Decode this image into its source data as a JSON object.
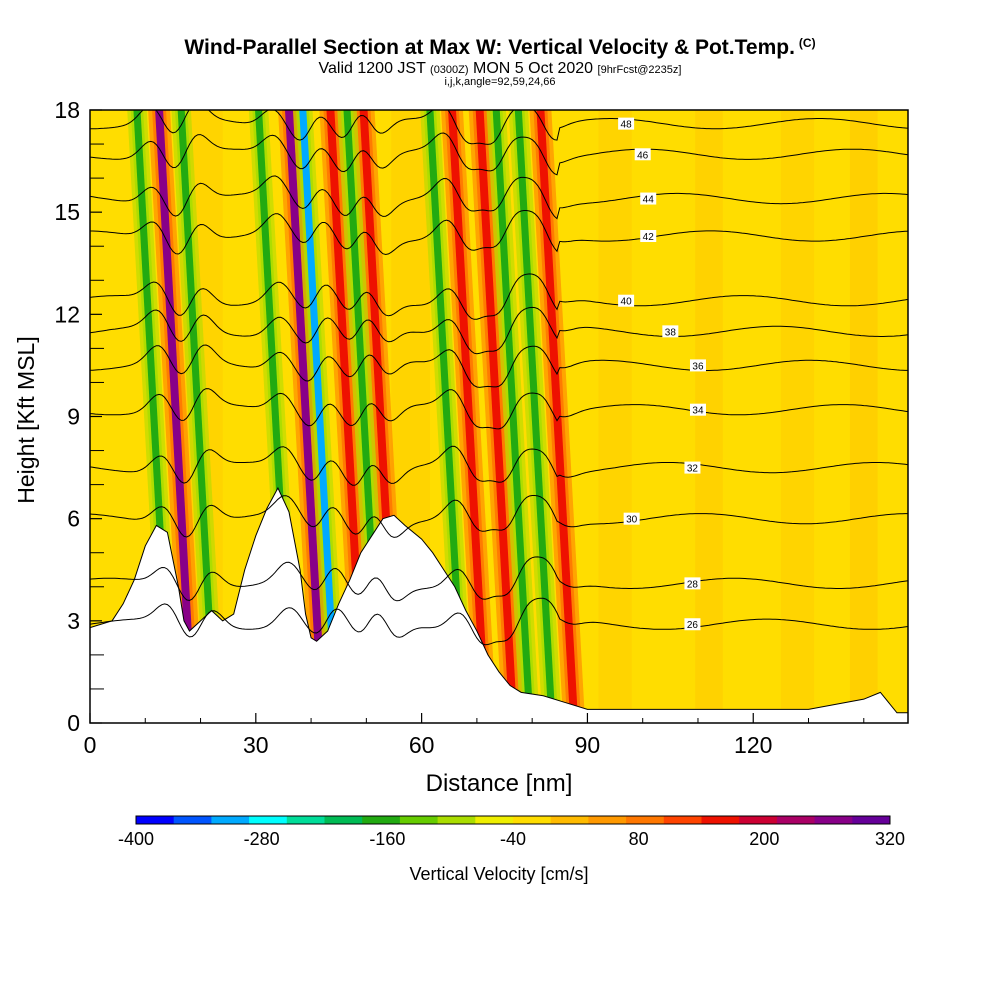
{
  "header": {
    "title": "Wind-Parallel Section at Max W: Vertical Velocity & Pot.Temp.",
    "title_tag": "(C)",
    "subtitle_valid": "Valid 1200 JST",
    "subtitle_utc": "(0300Z)",
    "subtitle_date": "MON 5 Oct 2020",
    "subtitle_fcst": "[9hrFcst@2235z]",
    "params": "i,j,k,angle=92,59,24,66"
  },
  "chart_data": {
    "type": "heatmap",
    "title": "Wind-Parallel Section at Max W: Vertical Velocity & Pot.Temp.",
    "xlabel": "Distance [nm]",
    "ylabel": "Height [Kft MSL]",
    "xlim": [
      0,
      148
    ],
    "ylim": [
      0,
      18
    ],
    "x_ticks": [
      0,
      30,
      60,
      90,
      120
    ],
    "y_ticks": [
      0,
      3,
      6,
      9,
      12,
      15,
      18
    ],
    "colorbar": {
      "label": "Vertical Velocity [cm/s]",
      "tick_labels": [
        "-400",
        "-280",
        "-160",
        "-40",
        "80",
        "200",
        "320"
      ],
      "tick_values": [
        -400,
        -280,
        -160,
        -40,
        80,
        200,
        320
      ],
      "colors": [
        "#0000ff",
        "#0055ff",
        "#00aaff",
        "#00ffff",
        "#00dd99",
        "#00bb55",
        "#22aa11",
        "#66cc00",
        "#aadd00",
        "#eeee00",
        "#ffdd00",
        "#ffbb00",
        "#ff9900",
        "#ff7700",
        "#ff4400",
        "#ee1100",
        "#cc0033",
        "#aa0066",
        "#880088",
        "#660099"
      ]
    },
    "updrafts_x": [
      15,
      38.5,
      46,
      52,
      68,
      73,
      84
    ],
    "downdrafts_x": [
      11,
      19,
      33,
      41,
      49,
      64,
      76,
      80
    ],
    "terrain": [
      [
        0,
        2.8
      ],
      [
        4,
        3.0
      ],
      [
        6,
        3.5
      ],
      [
        8,
        4.2
      ],
      [
        10,
        5.2
      ],
      [
        12,
        5.8
      ],
      [
        14,
        5.6
      ],
      [
        16,
        4.0
      ],
      [
        17,
        3.0
      ],
      [
        18,
        2.7
      ],
      [
        20,
        3.0
      ],
      [
        22,
        3.3
      ],
      [
        24,
        3.0
      ],
      [
        26,
        3.2
      ],
      [
        28,
        4.5
      ],
      [
        30,
        5.5
      ],
      [
        32,
        6.3
      ],
      [
        34,
        6.9
      ],
      [
        36,
        6.2
      ],
      [
        38,
        4.5
      ],
      [
        39,
        3.2
      ],
      [
        40,
        2.5
      ],
      [
        41,
        2.4
      ],
      [
        43,
        2.7
      ],
      [
        45,
        3.5
      ],
      [
        47,
        4.2
      ],
      [
        49,
        5.0
      ],
      [
        51,
        5.5
      ],
      [
        53,
        6.0
      ],
      [
        55,
        6.1
      ],
      [
        57,
        5.8
      ],
      [
        60,
        5.4
      ],
      [
        62,
        5.0
      ],
      [
        64,
        4.5
      ],
      [
        66,
        4.0
      ],
      [
        68,
        3.3
      ],
      [
        70,
        2.7
      ],
      [
        72,
        2.0
      ],
      [
        74,
        1.5
      ],
      [
        76,
        1.1
      ],
      [
        78,
        0.9
      ],
      [
        82,
        0.8
      ],
      [
        86,
        0.6
      ],
      [
        90,
        0.4
      ],
      [
        100,
        0.4
      ],
      [
        110,
        0.4
      ],
      [
        120,
        0.4
      ],
      [
        130,
        0.4
      ],
      [
        140,
        0.7
      ],
      [
        143,
        0.9
      ],
      [
        146,
        0.3
      ],
      [
        148,
        0.3
      ]
    ],
    "theta_contours": [
      {
        "label": "26",
        "base_height": 2.9,
        "label_x": 109
      },
      {
        "label": "28",
        "base_height": 4.1,
        "label_x": 109
      },
      {
        "label": "30",
        "base_height": 6.0,
        "label_x": 98
      },
      {
        "label": "32",
        "base_height": 7.5,
        "label_x": 109
      },
      {
        "label": "34",
        "base_height": 9.2,
        "label_x": 110
      },
      {
        "label": "36",
        "base_height": 10.5,
        "label_x": 110
      },
      {
        "label": "38",
        "base_height": 11.5,
        "label_x": 105
      },
      {
        "label": "40",
        "base_height": 12.4,
        "label_x": 97
      },
      {
        "label": "42",
        "base_height": 14.3,
        "label_x": 101
      },
      {
        "label": "44",
        "base_height": 15.4,
        "label_x": 101
      },
      {
        "label": "46",
        "base_height": 16.7,
        "label_x": 100
      },
      {
        "label": "48",
        "base_height": 17.6,
        "label_x": 97
      }
    ]
  }
}
